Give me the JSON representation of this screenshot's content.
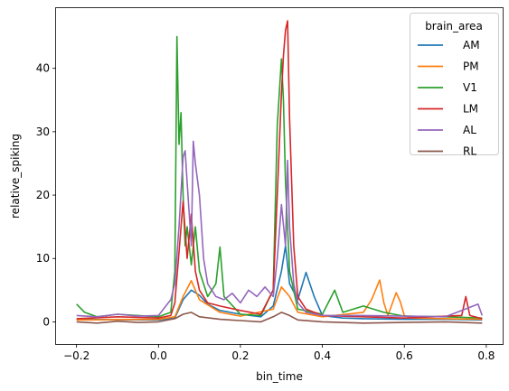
{
  "chart_data": {
    "type": "line",
    "xlabel": "bin_time",
    "ylabel": "relative_spiking",
    "xlim": [
      -0.25,
      0.84
    ],
    "ylim": [
      -3.5,
      49.5
    ],
    "xticks": [
      -0.2,
      0.0,
      0.2,
      0.4,
      0.6,
      0.8
    ],
    "xtick_labels": [
      "−0.2",
      "0.0",
      "0.2",
      "0.4",
      "0.6",
      "0.8"
    ],
    "yticks": [
      0,
      10,
      20,
      30,
      40
    ],
    "ytick_labels": [
      "0",
      "10",
      "20",
      "30",
      "40"
    ],
    "grid": false,
    "legend": {
      "title": "brain_area",
      "placement": "upper right",
      "entries": [
        "AM",
        "PM",
        "V1",
        "LM",
        "AL",
        "RL"
      ]
    },
    "series": [
      {
        "name": "AM",
        "color": "#1f77b4",
        "x": [
          -0.2,
          0.0,
          0.04,
          0.06,
          0.08,
          0.1,
          0.12,
          0.15,
          0.2,
          0.25,
          0.28,
          0.3,
          0.31,
          0.32,
          0.34,
          0.36,
          0.38,
          0.4,
          0.45,
          0.5,
          0.6,
          0.7,
          0.79
        ],
        "y": [
          0.4,
          0.3,
          0.6,
          3.5,
          5.0,
          4.2,
          2.8,
          1.8,
          1.2,
          0.8,
          2.5,
          8.0,
          12.0,
          6.0,
          3.5,
          7.8,
          4.0,
          1.0,
          0.6,
          0.5,
          0.4,
          0.4,
          0.3
        ]
      },
      {
        "name": "PM",
        "color": "#ff7f0e",
        "x": [
          -0.2,
          0.0,
          0.04,
          0.06,
          0.08,
          0.1,
          0.15,
          0.2,
          0.28,
          0.3,
          0.32,
          0.34,
          0.4,
          0.5,
          0.52,
          0.54,
          0.55,
          0.56,
          0.58,
          0.59,
          0.6,
          0.62,
          0.7,
          0.79
        ],
        "y": [
          0.3,
          0.4,
          0.8,
          4.0,
          6.5,
          3.5,
          1.5,
          0.9,
          2.0,
          5.5,
          4.0,
          1.5,
          0.8,
          1.5,
          3.5,
          6.6,
          3.0,
          1.0,
          4.6,
          3.2,
          1.0,
          0.6,
          0.5,
          0.4
        ]
      },
      {
        "name": "V1",
        "color": "#2ca02c",
        "x": [
          -0.2,
          -0.18,
          -0.15,
          -0.1,
          -0.05,
          0.0,
          0.03,
          0.04,
          0.045,
          0.05,
          0.055,
          0.06,
          0.065,
          0.07,
          0.08,
          0.09,
          0.1,
          0.12,
          0.14,
          0.15,
          0.16,
          0.2,
          0.25,
          0.28,
          0.29,
          0.3,
          0.305,
          0.31,
          0.32,
          0.34,
          0.4,
          0.43,
          0.45,
          0.5,
          0.55,
          0.6,
          0.7,
          0.79
        ],
        "y": [
          2.8,
          1.5,
          0.8,
          1.2,
          1.0,
          0.8,
          1.5,
          8.0,
          45.0,
          28.0,
          33.0,
          20.0,
          12.0,
          15.0,
          9.0,
          15.0,
          8.0,
          4.0,
          6.0,
          11.8,
          4.0,
          1.2,
          1.0,
          5.0,
          31.0,
          41.5,
          35.0,
          22.0,
          8.0,
          2.0,
          1.2,
          5.0,
          1.5,
          2.5,
          1.5,
          0.9,
          0.8,
          0.6
        ]
      },
      {
        "name": "LM",
        "color": "#d62728",
        "x": [
          -0.2,
          -0.1,
          0.0,
          0.03,
          0.04,
          0.05,
          0.06,
          0.07,
          0.08,
          0.09,
          0.1,
          0.12,
          0.15,
          0.2,
          0.25,
          0.28,
          0.29,
          0.3,
          0.305,
          0.31,
          0.315,
          0.32,
          0.33,
          0.34,
          0.36,
          0.4,
          0.5,
          0.6,
          0.74,
          0.75,
          0.76,
          0.79
        ],
        "y": [
          0.5,
          0.8,
          0.6,
          1.0,
          3.0,
          11.0,
          19.0,
          10.0,
          17.0,
          8.0,
          5.0,
          3.0,
          2.5,
          1.8,
          1.2,
          5.0,
          20.0,
          36.0,
          42.0,
          46.0,
          47.5,
          32.0,
          12.0,
          4.0,
          2.0,
          1.0,
          0.8,
          0.6,
          1.0,
          4.0,
          1.0,
          0.5
        ]
      },
      {
        "name": "AL",
        "color": "#9467bd",
        "x": [
          -0.2,
          -0.15,
          -0.1,
          -0.05,
          0.0,
          0.03,
          0.04,
          0.05,
          0.06,
          0.065,
          0.07,
          0.08,
          0.085,
          0.09,
          0.1,
          0.11,
          0.12,
          0.14,
          0.16,
          0.18,
          0.2,
          0.22,
          0.24,
          0.26,
          0.28,
          0.29,
          0.3,
          0.31,
          0.315,
          0.32,
          0.33,
          0.34,
          0.36,
          0.4,
          0.5,
          0.6,
          0.7,
          0.78,
          0.79
        ],
        "y": [
          1.0,
          0.8,
          1.2,
          0.9,
          1.0,
          3.5,
          6.0,
          15.0,
          26.0,
          27.0,
          22.0,
          12.0,
          28.5,
          25.0,
          20.0,
          10.0,
          6.0,
          4.0,
          3.5,
          4.5,
          3.0,
          5.0,
          4.0,
          5.5,
          4.0,
          10.0,
          18.5,
          12.0,
          25.5,
          15.0,
          6.0,
          3.0,
          1.5,
          1.0,
          1.0,
          0.9,
          0.8,
          2.8,
          1.0
        ]
      },
      {
        "name": "RL",
        "color": "#8c564b",
        "x": [
          -0.2,
          -0.15,
          -0.1,
          -0.05,
          0.0,
          0.04,
          0.06,
          0.08,
          0.1,
          0.15,
          0.2,
          0.25,
          0.28,
          0.3,
          0.32,
          0.34,
          0.4,
          0.5,
          0.6,
          0.7,
          0.79
        ],
        "y": [
          0.0,
          -0.2,
          0.1,
          -0.1,
          0.0,
          0.5,
          1.2,
          1.5,
          0.8,
          0.4,
          0.2,
          0.0,
          0.8,
          1.5,
          1.0,
          0.3,
          0.0,
          -0.2,
          -0.1,
          0.0,
          -0.2
        ]
      }
    ]
  }
}
